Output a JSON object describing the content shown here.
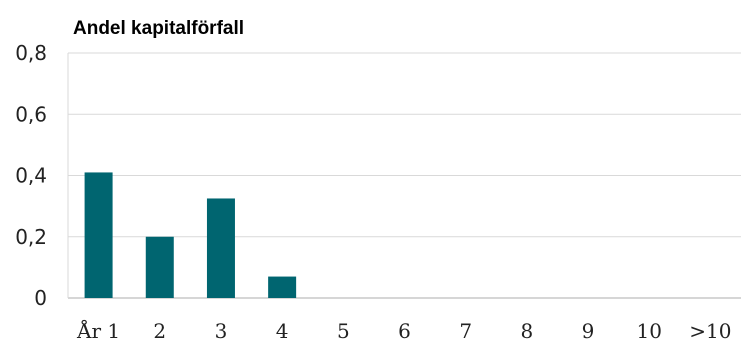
{
  "chart_data": {
    "type": "bar",
    "title": "Andel kapitalförfall",
    "xlabel": "",
    "ylabel": "",
    "categories": [
      "År 1",
      "2",
      "3",
      "4",
      "5",
      "6",
      "7",
      "8",
      "9",
      "10",
      ">10"
    ],
    "values": [
      0.41,
      0.2,
      0.325,
      0.07,
      0,
      0,
      0,
      0,
      0,
      0,
      0
    ],
    "yticks": [
      "0",
      "0,2",
      "0,4",
      "0,6",
      "0,8"
    ],
    "ylim": [
      0,
      0.8
    ],
    "grid": true,
    "legend": "none",
    "colors": {
      "bar": "#006570",
      "grid": "#d9d9d9",
      "axis": "#c8c8c8"
    }
  }
}
